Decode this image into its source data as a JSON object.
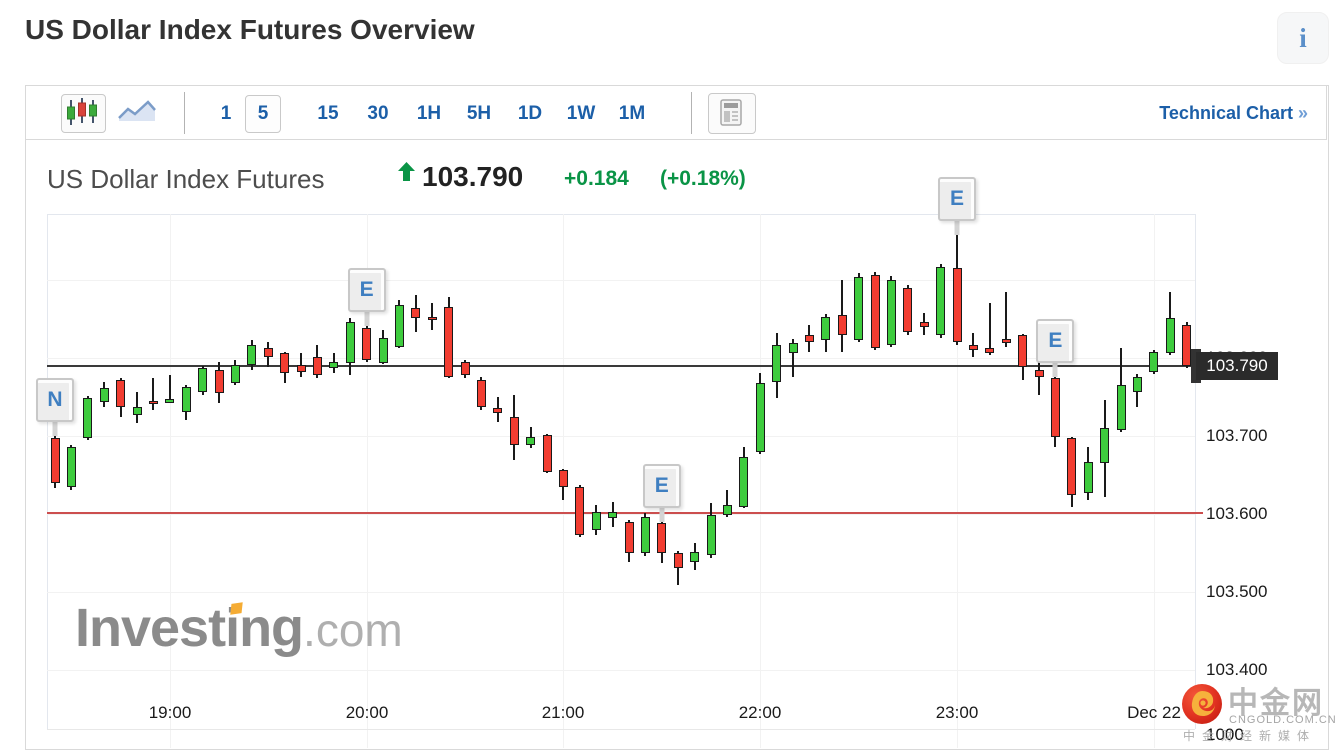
{
  "page": {
    "title": "US Dollar Index Futures Overview",
    "info_icon": "i"
  },
  "toolbar": {
    "chart_type_candlestick_selected": true,
    "timeframes": [
      "1",
      "5",
      "15",
      "30",
      "1H",
      "5H",
      "1D",
      "1W",
      "1M"
    ],
    "active_timeframe": "5",
    "technical_chart_label": "Technical Chart",
    "technical_chart_arrow": "»"
  },
  "quote": {
    "name": "US Dollar Index Futures",
    "direction": "up",
    "last": "103.790",
    "change": "+0.184",
    "change_pct": "(+0.18%)"
  },
  "colors": {
    "up_candle": "#3ecc3e",
    "down_candle": "#f23d31",
    "candle_outline": "#1a1a1a",
    "last_price_line": "#3a3a3a",
    "support_line": "#cc4e4e",
    "accent_blue": "#1c5fa8",
    "quote_green": "#0a9446"
  },
  "chart_data": {
    "type": "candlestick",
    "interval": "5 minutes",
    "grid": true,
    "ylim": [
      103.4,
      103.985
    ],
    "y_ticks": [
      {
        "label": "103.800",
        "value": 103.8,
        "hidden_behind_badge": true
      },
      {
        "label": "103.700",
        "value": 103.7
      },
      {
        "label": "103.600",
        "value": 103.6
      },
      {
        "label": "103.500",
        "value": 103.5
      },
      {
        "label": "103.400",
        "value": 103.4
      }
    ],
    "x_ticks": [
      {
        "label": "19:00",
        "candle": 7
      },
      {
        "label": "20:00",
        "candle": 19
      },
      {
        "label": "21:00",
        "candle": 31
      },
      {
        "label": "22:00",
        "candle": 43
      },
      {
        "label": "23:00",
        "candle": 55
      },
      {
        "label": "Dec 22",
        "candle": 67
      }
    ],
    "lines": {
      "last_price": {
        "value": 103.79,
        "label": "103.790"
      },
      "support": {
        "value": 103.601
      }
    },
    "volume_axis_tick": "1000",
    "markers": [
      {
        "label": "N",
        "candle": 0,
        "anchor_price": 103.7
      },
      {
        "label": "E",
        "candle": 19,
        "anchor_price": 103.841
      },
      {
        "label": "E",
        "candle": 37,
        "anchor_price": 103.59
      },
      {
        "label": "E",
        "candle": 55,
        "anchor_price": 103.958
      },
      {
        "label": "E",
        "candle": 61,
        "anchor_price": 103.776
      }
    ],
    "candles": [
      {
        "t": "18:25",
        "o": 103.697,
        "h": 103.7,
        "l": 103.633,
        "c": 103.64
      },
      {
        "t": "18:30",
        "o": 103.635,
        "h": 103.688,
        "l": 103.631,
        "c": 103.686
      },
      {
        "t": "18:35",
        "o": 103.697,
        "h": 103.751,
        "l": 103.695,
        "c": 103.749
      },
      {
        "t": "18:40",
        "o": 103.744,
        "h": 103.769,
        "l": 103.737,
        "c": 103.762
      },
      {
        "t": "18:45",
        "o": 103.772,
        "h": 103.774,
        "l": 103.724,
        "c": 103.737
      },
      {
        "t": "18:50",
        "o": 103.727,
        "h": 103.756,
        "l": 103.717,
        "c": 103.737
      },
      {
        "t": "18:55",
        "o": 103.745,
        "h": 103.774,
        "l": 103.733,
        "c": 103.741
      },
      {
        "t": "19:00",
        "o": 103.744,
        "h": 103.778,
        "l": 103.742,
        "c": 103.747
      },
      {
        "t": "19:05",
        "o": 103.731,
        "h": 103.765,
        "l": 103.721,
        "c": 103.763
      },
      {
        "t": "19:10",
        "o": 103.756,
        "h": 103.79,
        "l": 103.753,
        "c": 103.787
      },
      {
        "t": "19:15",
        "o": 103.785,
        "h": 103.795,
        "l": 103.742,
        "c": 103.755
      },
      {
        "t": "19:20",
        "o": 103.768,
        "h": 103.797,
        "l": 103.766,
        "c": 103.791
      },
      {
        "t": "19:25",
        "o": 103.791,
        "h": 103.823,
        "l": 103.785,
        "c": 103.817
      },
      {
        "t": "19:30",
        "o": 103.813,
        "h": 103.821,
        "l": 103.788,
        "c": 103.801
      },
      {
        "t": "19:35",
        "o": 103.806,
        "h": 103.808,
        "l": 103.768,
        "c": 103.781
      },
      {
        "t": "19:40",
        "o": 103.791,
        "h": 103.806,
        "l": 103.776,
        "c": 103.782
      },
      {
        "t": "19:45",
        "o": 103.801,
        "h": 103.817,
        "l": 103.774,
        "c": 103.778
      },
      {
        "t": "19:50",
        "o": 103.787,
        "h": 103.806,
        "l": 103.781,
        "c": 103.795
      },
      {
        "t": "19:55",
        "o": 103.794,
        "h": 103.851,
        "l": 103.778,
        "c": 103.846
      },
      {
        "t": "20:00",
        "o": 103.838,
        "h": 103.841,
        "l": 103.795,
        "c": 103.797
      },
      {
        "t": "20:05",
        "o": 103.794,
        "h": 103.836,
        "l": 103.792,
        "c": 103.826
      },
      {
        "t": "20:10",
        "o": 103.814,
        "h": 103.874,
        "l": 103.813,
        "c": 103.868
      },
      {
        "t": "20:15",
        "o": 103.864,
        "h": 103.881,
        "l": 103.833,
        "c": 103.851
      },
      {
        "t": "20:20",
        "o": 103.853,
        "h": 103.871,
        "l": 103.836,
        "c": 103.849
      },
      {
        "t": "20:25",
        "o": 103.865,
        "h": 103.878,
        "l": 103.774,
        "c": 103.776
      },
      {
        "t": "20:30",
        "o": 103.795,
        "h": 103.797,
        "l": 103.774,
        "c": 103.778
      },
      {
        "t": "20:35",
        "o": 103.772,
        "h": 103.776,
        "l": 103.733,
        "c": 103.737
      },
      {
        "t": "20:40",
        "o": 103.736,
        "h": 103.75,
        "l": 103.718,
        "c": 103.729
      },
      {
        "t": "20:45",
        "o": 103.724,
        "h": 103.753,
        "l": 103.669,
        "c": 103.688
      },
      {
        "t": "20:50",
        "o": 103.688,
        "h": 103.712,
        "l": 103.685,
        "c": 103.699
      },
      {
        "t": "20:55",
        "o": 103.701,
        "h": 103.703,
        "l": 103.653,
        "c": 103.654
      },
      {
        "t": "21:00",
        "o": 103.656,
        "h": 103.658,
        "l": 103.618,
        "c": 103.635
      },
      {
        "t": "21:05",
        "o": 103.635,
        "h": 103.637,
        "l": 103.57,
        "c": 103.573
      },
      {
        "t": "21:10",
        "o": 103.58,
        "h": 103.612,
        "l": 103.573,
        "c": 103.603
      },
      {
        "t": "21:15",
        "o": 103.595,
        "h": 103.615,
        "l": 103.583,
        "c": 103.603
      },
      {
        "t": "21:20",
        "o": 103.59,
        "h": 103.592,
        "l": 103.538,
        "c": 103.55
      },
      {
        "t": "21:25",
        "o": 103.55,
        "h": 103.601,
        "l": 103.546,
        "c": 103.596
      },
      {
        "t": "21:30",
        "o": 103.588,
        "h": 103.59,
        "l": 103.537,
        "c": 103.55
      },
      {
        "t": "21:35",
        "o": 103.55,
        "h": 103.552,
        "l": 103.509,
        "c": 103.531
      },
      {
        "t": "21:40",
        "o": 103.538,
        "h": 103.563,
        "l": 103.528,
        "c": 103.551
      },
      {
        "t": "21:45",
        "o": 103.547,
        "h": 103.614,
        "l": 103.544,
        "c": 103.599
      },
      {
        "t": "21:50",
        "o": 103.599,
        "h": 103.631,
        "l": 103.596,
        "c": 103.612
      },
      {
        "t": "21:55",
        "o": 103.609,
        "h": 103.686,
        "l": 103.608,
        "c": 103.673
      },
      {
        "t": "22:00",
        "o": 103.679,
        "h": 103.781,
        "l": 103.677,
        "c": 103.768
      },
      {
        "t": "22:05",
        "o": 103.769,
        "h": 103.832,
        "l": 103.749,
        "c": 103.817
      },
      {
        "t": "22:10",
        "o": 103.806,
        "h": 103.824,
        "l": 103.776,
        "c": 103.819
      },
      {
        "t": "22:15",
        "o": 103.829,
        "h": 103.842,
        "l": 103.808,
        "c": 103.821
      },
      {
        "t": "22:20",
        "o": 103.823,
        "h": 103.856,
        "l": 103.808,
        "c": 103.853
      },
      {
        "t": "22:25",
        "o": 103.855,
        "h": 103.9,
        "l": 103.808,
        "c": 103.829
      },
      {
        "t": "22:30",
        "o": 103.823,
        "h": 103.909,
        "l": 103.82,
        "c": 103.904
      },
      {
        "t": "22:35",
        "o": 103.906,
        "h": 103.91,
        "l": 103.81,
        "c": 103.813
      },
      {
        "t": "22:40",
        "o": 103.817,
        "h": 103.905,
        "l": 103.814,
        "c": 103.9
      },
      {
        "t": "22:45",
        "o": 103.89,
        "h": 103.894,
        "l": 103.829,
        "c": 103.833
      },
      {
        "t": "22:50",
        "o": 103.846,
        "h": 103.858,
        "l": 103.83,
        "c": 103.84
      },
      {
        "t": "22:55",
        "o": 103.829,
        "h": 103.92,
        "l": 103.826,
        "c": 103.917
      },
      {
        "t": "23:00",
        "o": 103.915,
        "h": 103.958,
        "l": 103.817,
        "c": 103.821
      },
      {
        "t": "23:05",
        "o": 103.817,
        "h": 103.832,
        "l": 103.801,
        "c": 103.81
      },
      {
        "t": "23:10",
        "o": 103.813,
        "h": 103.871,
        "l": 103.804,
        "c": 103.806
      },
      {
        "t": "23:15",
        "o": 103.824,
        "h": 103.885,
        "l": 103.814,
        "c": 103.82
      },
      {
        "t": "23:20",
        "o": 103.829,
        "h": 103.831,
        "l": 103.772,
        "c": 103.788
      },
      {
        "t": "23:25",
        "o": 103.785,
        "h": 103.806,
        "l": 103.753,
        "c": 103.776
      },
      {
        "t": "23:30",
        "o": 103.774,
        "h": 103.776,
        "l": 103.686,
        "c": 103.699
      },
      {
        "t": "23:35",
        "o": 103.697,
        "h": 103.699,
        "l": 103.609,
        "c": 103.624
      },
      {
        "t": "23:40",
        "o": 103.627,
        "h": 103.686,
        "l": 103.618,
        "c": 103.667
      },
      {
        "t": "23:45",
        "o": 103.665,
        "h": 103.746,
        "l": 103.622,
        "c": 103.71
      },
      {
        "t": "23:50",
        "o": 103.708,
        "h": 103.813,
        "l": 103.705,
        "c": 103.765
      },
      {
        "t": "23:55",
        "o": 103.756,
        "h": 103.779,
        "l": 103.737,
        "c": 103.776
      },
      {
        "t": "00:00",
        "o": 103.782,
        "h": 103.81,
        "l": 103.779,
        "c": 103.808
      },
      {
        "t": "00:05",
        "o": 103.806,
        "h": 103.885,
        "l": 103.804,
        "c": 103.851
      },
      {
        "t": "00:10",
        "o": 103.842,
        "h": 103.846,
        "l": 103.787,
        "c": 103.79
      }
    ]
  },
  "watermarks": {
    "investing": {
      "brand": "Investing",
      "suffix": ".com"
    },
    "cngold": {
      "name": "中金网",
      "url": "CNGOLD.COM.CN",
      "tagline": "中金财经新媒体"
    }
  }
}
